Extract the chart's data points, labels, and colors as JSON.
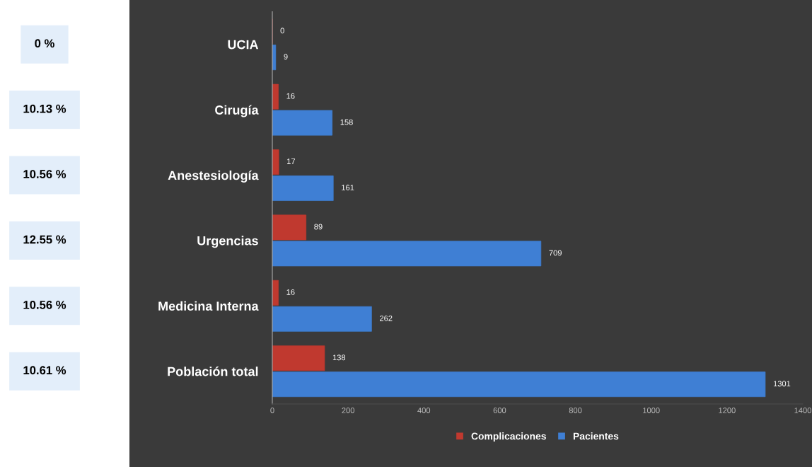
{
  "chart_data": {
    "type": "bar",
    "orientation": "horizontal",
    "categories": [
      "UCIA",
      "Cirugía",
      "Anestesiología",
      "Urgencias",
      "Medicina Interna",
      "Población total"
    ],
    "series": [
      {
        "name": "Complicaciones",
        "color": "#c0392f",
        "values": [
          0,
          16,
          17,
          89,
          16,
          138
        ]
      },
      {
        "name": "Pacientes",
        "color": "#3f7fd4",
        "values": [
          9,
          158,
          161,
          709,
          262,
          1301
        ]
      }
    ],
    "xlim": [
      0,
      1400
    ],
    "xticks": [
      0,
      200,
      400,
      600,
      800,
      1000,
      1200,
      1400
    ],
    "data_labels": true,
    "grid": false,
    "legend": "bottom",
    "annotations": [
      "0 %",
      "10.13 %",
      "10.56 %",
      "12.55 %",
      "10.56 %",
      "10.61 %"
    ]
  }
}
